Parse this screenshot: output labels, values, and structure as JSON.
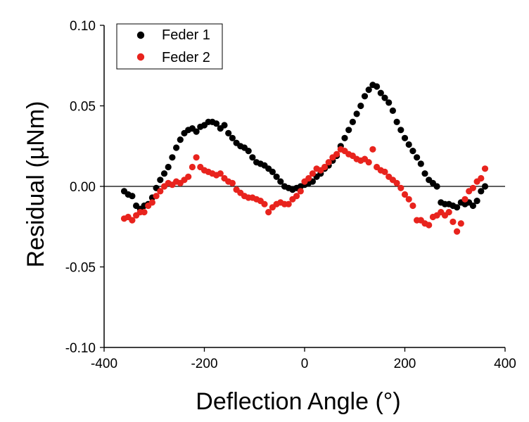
{
  "chart_data": {
    "type": "scatter",
    "title": "",
    "xlabel": "Deflection Angle (°)",
    "ylabel": "Residual (µNm)",
    "xlim": [
      -400,
      400
    ],
    "ylim": [
      -0.1,
      0.1
    ],
    "xticks": [
      -400,
      -200,
      0,
      200,
      400
    ],
    "xtick_labels": [
      "-400",
      "-200",
      "0",
      "200",
      "400"
    ],
    "yticks": [
      -0.1,
      -0.05,
      0.0,
      0.05,
      0.1
    ],
    "ytick_labels": [
      "-0.10",
      "-0.05",
      "0.00",
      "0.05",
      "0.10"
    ],
    "zero_line": 0,
    "legend_position": "top-left",
    "series": [
      {
        "name": "Feder 1",
        "color": "#000000",
        "points": [
          [
            -360,
            -0.003
          ],
          [
            -352,
            -0.005
          ],
          [
            -344,
            -0.006
          ],
          [
            -336,
            -0.012
          ],
          [
            -328,
            -0.014
          ],
          [
            -320,
            -0.012
          ],
          [
            -312,
            -0.011
          ],
          [
            -304,
            -0.007
          ],
          [
            -296,
            -0.001
          ],
          [
            -288,
            0.004
          ],
          [
            -280,
            0.008
          ],
          [
            -272,
            0.012
          ],
          [
            -264,
            0.018
          ],
          [
            -256,
            0.024
          ],
          [
            -248,
            0.029
          ],
          [
            -240,
            0.033
          ],
          [
            -232,
            0.035
          ],
          [
            -224,
            0.036
          ],
          [
            -216,
            0.034
          ],
          [
            -208,
            0.037
          ],
          [
            -200,
            0.038
          ],
          [
            -192,
            0.04
          ],
          [
            -184,
            0.04
          ],
          [
            -176,
            0.039
          ],
          [
            -168,
            0.036
          ],
          [
            -160,
            0.038
          ],
          [
            -152,
            0.033
          ],
          [
            -144,
            0.03
          ],
          [
            -136,
            0.027
          ],
          [
            -128,
            0.025
          ],
          [
            -120,
            0.024
          ],
          [
            -112,
            0.022
          ],
          [
            -104,
            0.018
          ],
          [
            -96,
            0.015
          ],
          [
            -88,
            0.014
          ],
          [
            -80,
            0.013
          ],
          [
            -72,
            0.011
          ],
          [
            -64,
            0.009
          ],
          [
            -56,
            0.006
          ],
          [
            -48,
            0.003
          ],
          [
            -40,
            0.0
          ],
          [
            -32,
            -0.001
          ],
          [
            -24,
            -0.002
          ],
          [
            -16,
            -0.001
          ],
          [
            -8,
            0.0
          ],
          [
            0,
            0.001
          ],
          [
            8,
            0.002
          ],
          [
            16,
            0.003
          ],
          [
            24,
            0.006
          ],
          [
            32,
            0.008
          ],
          [
            40,
            0.011
          ],
          [
            48,
            0.013
          ],
          [
            56,
            0.016
          ],
          [
            64,
            0.019
          ],
          [
            72,
            0.025
          ],
          [
            80,
            0.03
          ],
          [
            88,
            0.035
          ],
          [
            96,
            0.04
          ],
          [
            104,
            0.045
          ],
          [
            112,
            0.05
          ],
          [
            120,
            0.056
          ],
          [
            128,
            0.06
          ],
          [
            136,
            0.063
          ],
          [
            144,
            0.062
          ],
          [
            152,
            0.058
          ],
          [
            160,
            0.055
          ],
          [
            168,
            0.052
          ],
          [
            176,
            0.047
          ],
          [
            184,
            0.04
          ],
          [
            192,
            0.035
          ],
          [
            200,
            0.03
          ],
          [
            208,
            0.026
          ],
          [
            216,
            0.022
          ],
          [
            224,
            0.018
          ],
          [
            232,
            0.014
          ],
          [
            240,
            0.008
          ],
          [
            248,
            0.004
          ],
          [
            256,
            0.002
          ],
          [
            264,
            0.0
          ],
          [
            272,
            -0.01
          ],
          [
            280,
            -0.011
          ],
          [
            288,
            -0.011
          ],
          [
            296,
            -0.012
          ],
          [
            304,
            -0.013
          ],
          [
            312,
            -0.01
          ],
          [
            320,
            -0.011
          ],
          [
            328,
            -0.01
          ],
          [
            336,
            -0.012
          ],
          [
            344,
            -0.009
          ],
          [
            352,
            -0.003
          ],
          [
            360,
            0.0
          ]
        ]
      },
      {
        "name": "Feder 2",
        "color": "#e8231d",
        "points": [
          [
            -360,
            -0.02
          ],
          [
            -352,
            -0.019
          ],
          [
            -344,
            -0.021
          ],
          [
            -336,
            -0.018
          ],
          [
            -328,
            -0.016
          ],
          [
            -320,
            -0.016
          ],
          [
            -312,
            -0.012
          ],
          [
            -304,
            -0.01
          ],
          [
            -296,
            -0.006
          ],
          [
            -288,
            -0.003
          ],
          [
            -280,
            0.0
          ],
          [
            -272,
            0.002
          ],
          [
            -264,
            0.001
          ],
          [
            -256,
            0.003
          ],
          [
            -248,
            0.002
          ],
          [
            -240,
            0.004
          ],
          [
            -232,
            0.006
          ],
          [
            -224,
            0.012
          ],
          [
            -216,
            0.018
          ],
          [
            -208,
            0.012
          ],
          [
            -200,
            0.01
          ],
          [
            -192,
            0.009
          ],
          [
            -184,
            0.008
          ],
          [
            -176,
            0.007
          ],
          [
            -168,
            0.008
          ],
          [
            -160,
            0.005
          ],
          [
            -152,
            0.003
          ],
          [
            -144,
            0.002
          ],
          [
            -136,
            -0.002
          ],
          [
            -128,
            -0.004
          ],
          [
            -120,
            -0.006
          ],
          [
            -112,
            -0.007
          ],
          [
            -104,
            -0.007
          ],
          [
            -96,
            -0.008
          ],
          [
            -88,
            -0.009
          ],
          [
            -80,
            -0.011
          ],
          [
            -72,
            -0.016
          ],
          [
            -64,
            -0.013
          ],
          [
            -56,
            -0.011
          ],
          [
            -48,
            -0.01
          ],
          [
            -40,
            -0.011
          ],
          [
            -32,
            -0.011
          ],
          [
            -24,
            -0.008
          ],
          [
            -16,
            -0.006
          ],
          [
            -8,
            -0.003
          ],
          [
            0,
            0.003
          ],
          [
            8,
            0.005
          ],
          [
            16,
            0.008
          ],
          [
            24,
            0.011
          ],
          [
            32,
            0.01
          ],
          [
            40,
            0.012
          ],
          [
            48,
            0.015
          ],
          [
            56,
            0.018
          ],
          [
            64,
            0.02
          ],
          [
            72,
            0.023
          ],
          [
            80,
            0.022
          ],
          [
            88,
            0.02
          ],
          [
            96,
            0.019
          ],
          [
            104,
            0.017
          ],
          [
            112,
            0.016
          ],
          [
            120,
            0.017
          ],
          [
            128,
            0.015
          ],
          [
            136,
            0.023
          ],
          [
            144,
            0.012
          ],
          [
            152,
            0.01
          ],
          [
            160,
            0.009
          ],
          [
            168,
            0.006
          ],
          [
            176,
            0.004
          ],
          [
            184,
            0.002
          ],
          [
            192,
            -0.001
          ],
          [
            200,
            -0.005
          ],
          [
            208,
            -0.008
          ],
          [
            216,
            -0.012
          ],
          [
            224,
            -0.021
          ],
          [
            232,
            -0.021
          ],
          [
            240,
            -0.023
          ],
          [
            248,
            -0.024
          ],
          [
            256,
            -0.019
          ],
          [
            264,
            -0.018
          ],
          [
            272,
            -0.016
          ],
          [
            280,
            -0.018
          ],
          [
            288,
            -0.016
          ],
          [
            296,
            -0.022
          ],
          [
            304,
            -0.028
          ],
          [
            312,
            -0.023
          ],
          [
            320,
            -0.008
          ],
          [
            328,
            -0.003
          ],
          [
            336,
            -0.001
          ],
          [
            344,
            0.003
          ],
          [
            352,
            0.005
          ],
          [
            360,
            0.011
          ]
        ]
      }
    ]
  }
}
